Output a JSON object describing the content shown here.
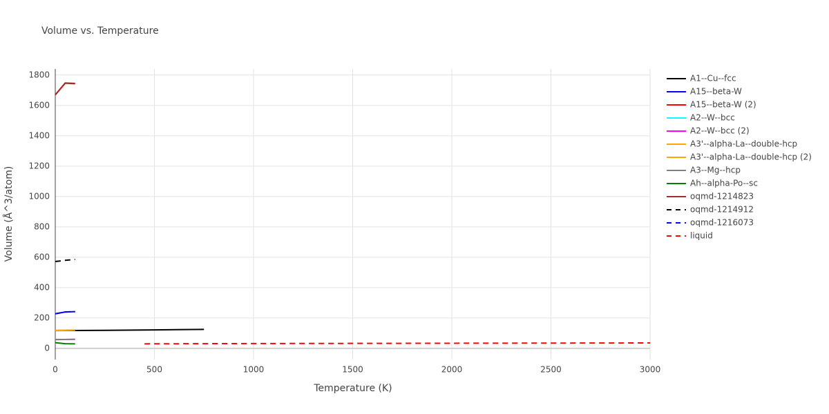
{
  "chart_data": {
    "type": "line",
    "title": "Volume vs. Temperature",
    "x_label": "Temperature (K)",
    "y_label": "Volume (Å^3/atom)",
    "xlim": [
      0,
      3000
    ],
    "ylim": [
      -73,
      1840
    ],
    "xticks": [
      0,
      500,
      1000,
      1500,
      2000,
      2500,
      3000
    ],
    "yticks": [
      0,
      200,
      400,
      600,
      800,
      1000,
      1200,
      1400,
      1600,
      1800
    ],
    "grid": true,
    "legend": "right",
    "series": [
      {
        "name": "A1--Cu--fcc",
        "color": "#000000",
        "dash": false,
        "x": [
          0,
          250,
          500,
          750
        ],
        "values": [
          117,
          119,
          122,
          125
        ]
      },
      {
        "name": "A15--beta-W",
        "color": "#0000ff",
        "dash": false,
        "x": [
          0,
          50,
          100
        ],
        "values": [
          228,
          240,
          242
        ]
      },
      {
        "name": "A15--beta-W (2)",
        "color": "#ff0000",
        "dash": false,
        "x": [
          0,
          50,
          100
        ],
        "values": [
          1670,
          1746,
          1743
        ]
      },
      {
        "name": "A2--W--bcc",
        "color": "#00ffff",
        "dash": false,
        "x": [
          0,
          50,
          100
        ],
        "values": [
          118,
          119,
          120
        ]
      },
      {
        "name": "A2--W--bcc (2)",
        "color": "#ff00ff",
        "dash": false,
        "x": [
          0,
          50,
          100
        ],
        "values": [
          58,
          59,
          60
        ]
      },
      {
        "name": "A3'--alpha-La--double-hcp",
        "color": "#ffa500",
        "dash": false,
        "x": [
          0,
          50,
          100
        ],
        "values": [
          118,
          119,
          120
        ]
      },
      {
        "name": "A3'--alpha-La--double-hcp (2)",
        "color": "#ffa500",
        "dash": false,
        "x": [
          0,
          50,
          100
        ],
        "values": [
          119,
          120,
          121
        ]
      },
      {
        "name": "A3--Mg--hcp",
        "color": "#808080",
        "dash": false,
        "x": [
          0,
          50,
          100
        ],
        "values": [
          58,
          59,
          60
        ]
      },
      {
        "name": "Ah--alpha-Po--sc",
        "color": "#008000",
        "dash": false,
        "x": [
          0,
          50,
          100
        ],
        "values": [
          38,
          31,
          30
        ]
      },
      {
        "name": "oqmd-1214823",
        "color": "#a52a2a",
        "dash": false,
        "x": [
          0,
          50,
          100
        ],
        "values": [
          1670,
          1748,
          1745
        ]
      },
      {
        "name": "oqmd-1214912",
        "color": "#000000",
        "dash": true,
        "x": [
          0,
          50,
          100
        ],
        "values": [
          572,
          580,
          586
        ]
      },
      {
        "name": "oqmd-1216073",
        "color": "#0000ff",
        "dash": true,
        "x": [
          0,
          50,
          100
        ],
        "values": [
          228,
          240,
          242
        ]
      },
      {
        "name": "liquid",
        "color": "#ff0000",
        "dash": true,
        "x": [
          450,
          1000,
          1500,
          2000,
          2500,
          3000
        ],
        "values": [
          30,
          32,
          33,
          34,
          35,
          36
        ]
      }
    ]
  }
}
